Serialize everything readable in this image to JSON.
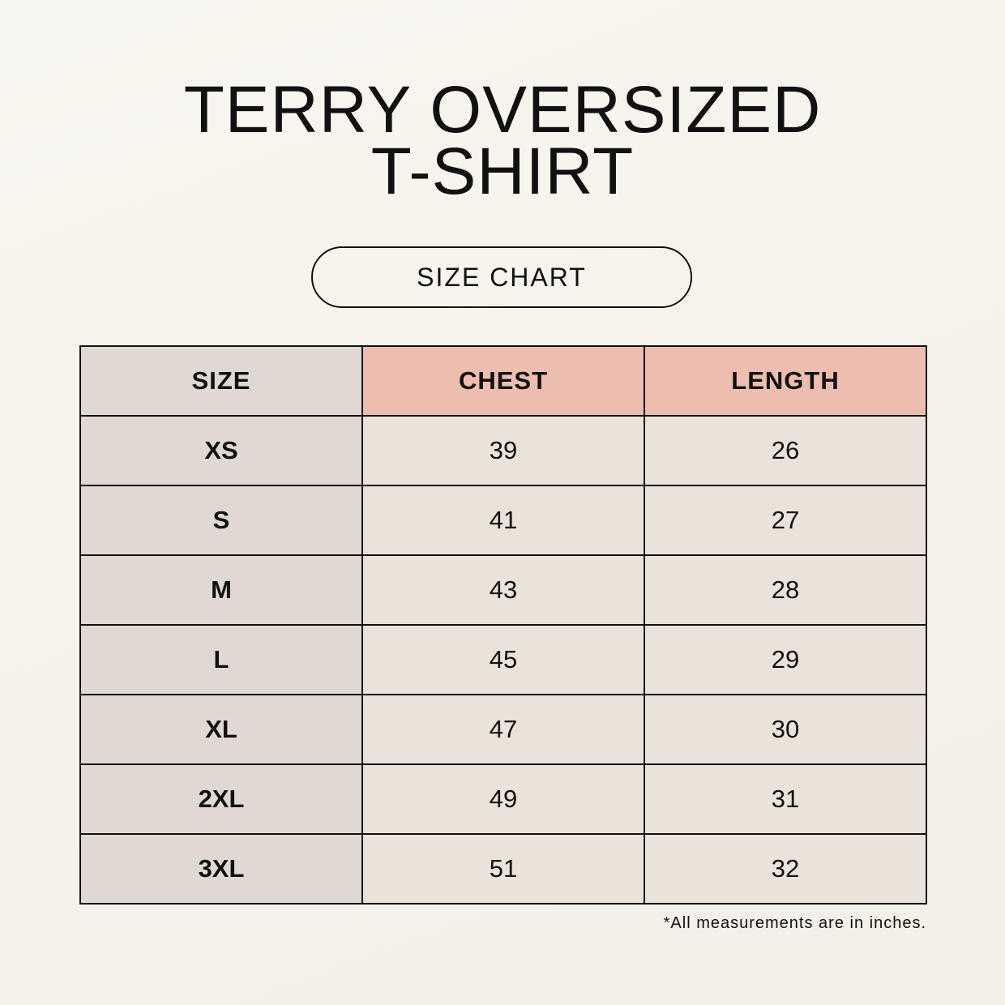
{
  "title_line1": "TERRY OVERSIZED",
  "title_line2": "T-SHIRT",
  "subtitle": "SIZE CHART",
  "table": {
    "headers": [
      "SIZE",
      "CHEST",
      "LENGTH"
    ],
    "rows": [
      [
        "XS",
        "39",
        "26"
      ],
      [
        "S",
        "41",
        "27"
      ],
      [
        "M",
        "43",
        "28"
      ],
      [
        "L",
        "45",
        "29"
      ],
      [
        "XL",
        "47",
        "30"
      ],
      [
        "2XL",
        "49",
        "31"
      ],
      [
        "3XL",
        "51",
        "32"
      ]
    ]
  },
  "note": "*All measurements are in inches.",
  "colors": {
    "size_column": "#e0d9d3",
    "measure_header": "#edbdb0",
    "measure_cells": "#ebe3d9"
  }
}
